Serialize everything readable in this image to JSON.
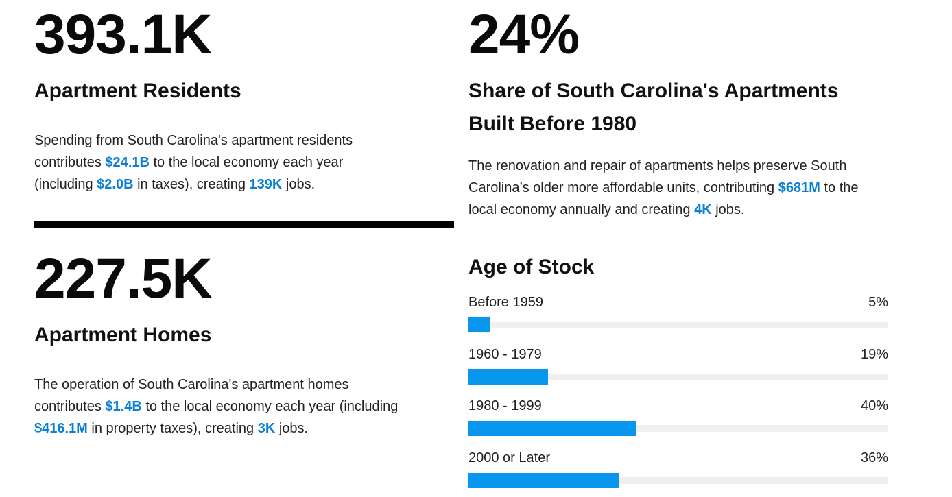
{
  "residents": {
    "number": "393.1K",
    "title": "Apartment Residents",
    "desc_parts": [
      "Spending from South Carolina's apartment residents contributes ",
      "$24.1B",
      " to the local economy each year (including ",
      "$2.0B",
      " in taxes), creating ",
      "139K",
      " jobs."
    ]
  },
  "homes": {
    "number": "227.5K",
    "title": "Apartment Homes",
    "desc_parts": [
      "The operation of South Carolina's apartment homes contributes ",
      "$1.4B",
      " to the local economy each year (including ",
      "$416.1M",
      " in property taxes), creating ",
      "3K",
      " jobs."
    ]
  },
  "share": {
    "number": "24%",
    "title": "Share of South Carolina's Apartments Built Before 1980",
    "desc_parts": [
      "The renovation and repair of apartments helps preserve South Carolina’s older more affordable units, contributing ",
      "$681M",
      " to the local economy annually and creating ",
      "4K",
      " jobs."
    ]
  },
  "colors": {
    "accent": "#0a7fd4",
    "bar": "#0996ef",
    "track": "#efefef",
    "divider": "#000000"
  },
  "chart_data": {
    "type": "bar",
    "title": "Age of Stock",
    "categories": [
      "Before 1959",
      "1960 - 1979",
      "1980 - 1999",
      "2000 or Later"
    ],
    "values": [
      5,
      19,
      40,
      36
    ],
    "value_labels": [
      "5%",
      "19%",
      "40%",
      "36%"
    ],
    "ylim": [
      0,
      100
    ],
    "orientation": "horizontal",
    "grid": false
  }
}
